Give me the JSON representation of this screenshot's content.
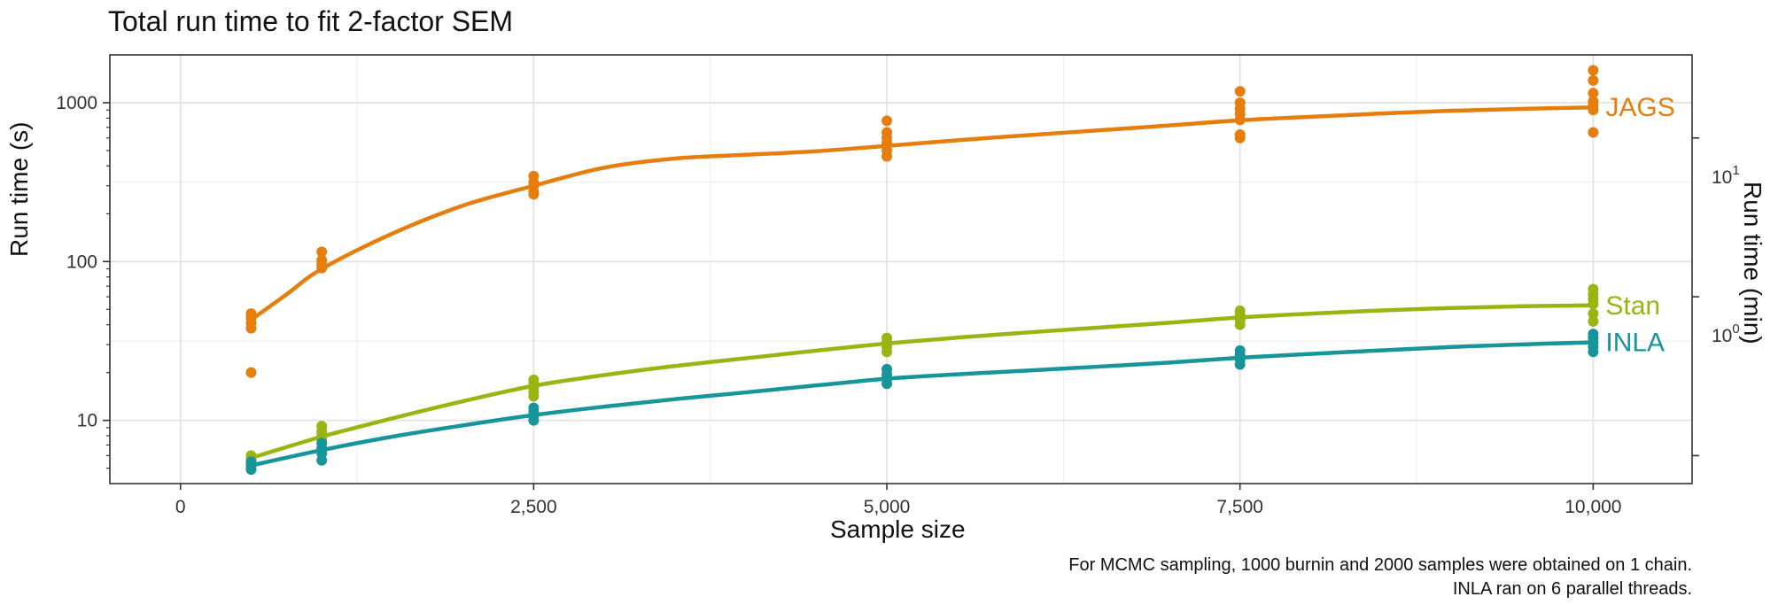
{
  "chart_data": {
    "type": "scatter",
    "title": "Total run time to fit 2-factor SEM",
    "xlabel": "Sample size",
    "ylabel": "Run time (s)",
    "y2label": "Run time (min)",
    "x_scale": "linear",
    "y_scale": "log10",
    "xlim": [
      -500,
      10700
    ],
    "ylim": [
      4,
      2000
    ],
    "x_ticks": [
      {
        "value": 0,
        "label": "0"
      },
      {
        "value": 2500,
        "label": "2,500"
      },
      {
        "value": 5000,
        "label": "5,000"
      },
      {
        "value": 7500,
        "label": "7,500"
      },
      {
        "value": 10000,
        "label": "10,000"
      }
    ],
    "y_ticks": [
      {
        "value": 10,
        "label": "10"
      },
      {
        "value": 100,
        "label": "100"
      },
      {
        "value": 1000,
        "label": "1000"
      }
    ],
    "y2_ticks": [
      {
        "value_seconds": 6,
        "label_base": "",
        "label_exp": ""
      },
      {
        "value_seconds": 60,
        "label_base": "10",
        "label_exp": "0"
      },
      {
        "value_seconds": 600,
        "label_base": "10",
        "label_exp": "1"
      }
    ],
    "grid": true,
    "series": [
      {
        "name": "JAGS",
        "color": "#E67E0E",
        "points": [
          [
            500,
            47
          ],
          [
            500,
            44
          ],
          [
            500,
            41
          ],
          [
            500,
            38
          ],
          [
            500,
            20
          ],
          [
            1000,
            115
          ],
          [
            1000,
            102
          ],
          [
            1000,
            96
          ],
          [
            1000,
            91
          ],
          [
            2500,
            345
          ],
          [
            2500,
            315
          ],
          [
            2500,
            300
          ],
          [
            2500,
            275
          ],
          [
            2500,
            265
          ],
          [
            5000,
            770
          ],
          [
            5000,
            650
          ],
          [
            5000,
            600
          ],
          [
            5000,
            560
          ],
          [
            5000,
            500
          ],
          [
            5000,
            460
          ],
          [
            7500,
            1180
          ],
          [
            7500,
            1000
          ],
          [
            7500,
            920
          ],
          [
            7500,
            850
          ],
          [
            7500,
            780
          ],
          [
            7500,
            630
          ],
          [
            7500,
            600
          ],
          [
            10000,
            1600
          ],
          [
            10000,
            1380
          ],
          [
            10000,
            1150
          ],
          [
            10000,
            1020
          ],
          [
            10000,
            960
          ],
          [
            10000,
            900
          ],
          [
            10000,
            650
          ]
        ],
        "fit": [
          [
            500,
            43
          ],
          [
            750,
            62
          ],
          [
            1000,
            90
          ],
          [
            1500,
            150
          ],
          [
            2000,
            225
          ],
          [
            2500,
            300
          ],
          [
            3000,
            390
          ],
          [
            3500,
            445
          ],
          [
            4000,
            470
          ],
          [
            4500,
            495
          ],
          [
            5000,
            535
          ],
          [
            5500,
            580
          ],
          [
            6000,
            625
          ],
          [
            6500,
            670
          ],
          [
            7000,
            720
          ],
          [
            7500,
            775
          ],
          [
            8000,
            815
          ],
          [
            8500,
            855
          ],
          [
            9000,
            890
          ],
          [
            9500,
            915
          ],
          [
            10000,
            935
          ]
        ]
      },
      {
        "name": "Stan",
        "color": "#99B512",
        "points": [
          [
            500,
            6.0
          ],
          [
            500,
            5.7
          ],
          [
            500,
            5.4
          ],
          [
            1000,
            9.2
          ],
          [
            1000,
            8.5
          ],
          [
            1000,
            8.0
          ],
          [
            1000,
            7.6
          ],
          [
            2500,
            18.0
          ],
          [
            2500,
            17.0
          ],
          [
            2500,
            16.0
          ],
          [
            2500,
            15.0
          ],
          [
            2500,
            14.2
          ],
          [
            5000,
            33
          ],
          [
            5000,
            31
          ],
          [
            5000,
            29
          ],
          [
            5000,
            27
          ],
          [
            7500,
            49
          ],
          [
            7500,
            46
          ],
          [
            7500,
            43
          ],
          [
            7500,
            40
          ],
          [
            10000,
            67
          ],
          [
            10000,
            62
          ],
          [
            10000,
            58
          ],
          [
            10000,
            54
          ],
          [
            10000,
            47
          ],
          [
            10000,
            42
          ]
        ],
        "fit": [
          [
            500,
            5.8
          ],
          [
            1000,
            7.9
          ],
          [
            1500,
            10.3
          ],
          [
            2000,
            13.2
          ],
          [
            2500,
            16.5
          ],
          [
            3000,
            19.3
          ],
          [
            3500,
            22.0
          ],
          [
            4000,
            24.6
          ],
          [
            4500,
            27.5
          ],
          [
            5000,
            30.5
          ],
          [
            5500,
            33.2
          ],
          [
            6000,
            35.8
          ],
          [
            6500,
            38.4
          ],
          [
            7000,
            41.2
          ],
          [
            7500,
            44.5
          ],
          [
            8000,
            47.0
          ],
          [
            8500,
            49.2
          ],
          [
            9000,
            51.0
          ],
          [
            9500,
            52.3
          ],
          [
            10000,
            53.0
          ]
        ]
      },
      {
        "name": "INLA",
        "color": "#16959A",
        "points": [
          [
            500,
            5.5
          ],
          [
            500,
            5.2
          ],
          [
            500,
            4.9
          ],
          [
            1000,
            7.2
          ],
          [
            1000,
            6.7
          ],
          [
            1000,
            6.2
          ],
          [
            1000,
            5.6
          ],
          [
            2500,
            12.0
          ],
          [
            2500,
            11.3
          ],
          [
            2500,
            10.6
          ],
          [
            2500,
            10.0
          ],
          [
            5000,
            21.0
          ],
          [
            5000,
            19.5
          ],
          [
            5000,
            18.3
          ],
          [
            5000,
            17.0
          ],
          [
            7500,
            27.5
          ],
          [
            7500,
            25.8
          ],
          [
            7500,
            24.2
          ],
          [
            7500,
            22.5
          ],
          [
            10000,
            35
          ],
          [
            10000,
            33
          ],
          [
            10000,
            31
          ],
          [
            10000,
            29
          ],
          [
            10000,
            27
          ]
        ],
        "fit": [
          [
            500,
            5.2
          ],
          [
            1000,
            6.5
          ],
          [
            1500,
            7.9
          ],
          [
            2000,
            9.3
          ],
          [
            2500,
            10.8
          ],
          [
            3000,
            12.2
          ],
          [
            3500,
            13.6
          ],
          [
            4000,
            15.0
          ],
          [
            4500,
            16.6
          ],
          [
            5000,
            18.3
          ],
          [
            5500,
            19.5
          ],
          [
            6000,
            20.6
          ],
          [
            6500,
            21.8
          ],
          [
            7000,
            23.1
          ],
          [
            7500,
            24.8
          ],
          [
            8000,
            26.2
          ],
          [
            8500,
            27.6
          ],
          [
            9000,
            29.0
          ],
          [
            9500,
            30.1
          ],
          [
            10000,
            31.0
          ]
        ]
      }
    ],
    "series_labels": [
      {
        "name": "JAGS",
        "text": "JAGS"
      },
      {
        "name": "Stan",
        "text": "Stan"
      },
      {
        "name": "INLA",
        "text": "INLA"
      }
    ],
    "caption": [
      "For MCMC sampling, 1000 burnin and 2000 samples were obtained on 1 chain.",
      "INLA ran on 6 parallel threads."
    ]
  }
}
